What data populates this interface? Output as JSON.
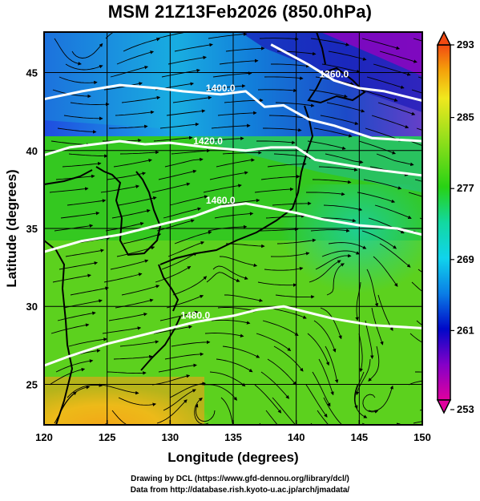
{
  "title": "MSM 21Z13Feb2026 (850.0hPa)",
  "map": {
    "region": "East Asia / Japan",
    "lon_range": [
      120,
      150
    ],
    "lat_range": [
      22.4,
      47.6
    ],
    "x_ticks": [
      "120",
      "125",
      "130",
      "135",
      "140",
      "145",
      "150"
    ],
    "y_ticks": [
      "25",
      "30",
      "35",
      "40",
      "45"
    ],
    "xlabel": "Longitude (degrees)",
    "ylabel": "Latitude  (degrees)",
    "grid": true,
    "field": "temperature (shaded), geopotential height (white contours), wind (streamlines)",
    "contours": [
      {
        "label": "1360.0",
        "points": [
          [
            138,
            46.8
          ],
          [
            141,
            45.5
          ],
          [
            143,
            44.5
          ],
          [
            145,
            44.0
          ],
          [
            147,
            43.8
          ],
          [
            150,
            43.2
          ]
        ]
      },
      {
        "label": "1400.0",
        "points": [
          [
            120,
            43.3
          ],
          [
            123,
            43.8
          ],
          [
            126,
            44.2
          ],
          [
            129,
            44.0
          ],
          [
            131,
            43.8
          ],
          [
            134,
            43.6
          ],
          [
            136,
            43.8
          ],
          [
            137.5,
            42.8
          ],
          [
            139,
            42.9
          ],
          [
            141,
            42.0
          ],
          [
            143,
            41.6
          ],
          [
            146,
            40.8
          ],
          [
            150,
            40.6
          ]
        ]
      },
      {
        "label": "1420.0",
        "points": [
          [
            120,
            39.7
          ],
          [
            122,
            40.2
          ],
          [
            124,
            40.4
          ],
          [
            126,
            40.6
          ],
          [
            128,
            40.4
          ],
          [
            130,
            40.5
          ],
          [
            133,
            40.2
          ],
          [
            136,
            40.0
          ],
          [
            138,
            40.2
          ],
          [
            140,
            40.2
          ],
          [
            141.5,
            39.4
          ],
          [
            143,
            39.2
          ],
          [
            146,
            38.8
          ],
          [
            150,
            38.4
          ]
        ]
      },
      {
        "label": "1460.0",
        "points": [
          [
            120,
            33.5
          ],
          [
            123,
            34.2
          ],
          [
            126,
            34.6
          ],
          [
            128,
            35.0
          ],
          [
            130,
            35.4
          ],
          [
            132,
            35.8
          ],
          [
            134,
            36.4
          ],
          [
            136,
            36.6
          ],
          [
            138,
            36.3
          ],
          [
            140,
            36.0
          ],
          [
            142,
            35.6
          ],
          [
            145,
            35.2
          ],
          [
            148,
            35.0
          ],
          [
            150,
            34.6
          ]
        ]
      },
      {
        "label": "1480.0",
        "points": [
          [
            120,
            26.2
          ],
          [
            122,
            26.8
          ],
          [
            125,
            27.6
          ],
          [
            128,
            28.2
          ],
          [
            130,
            28.6
          ],
          [
            132,
            29.0
          ],
          [
            135,
            29.4
          ],
          [
            137,
            29.8
          ],
          [
            139,
            30.0
          ],
          [
            141,
            29.6
          ],
          [
            143,
            29.2
          ],
          [
            146,
            28.8
          ],
          [
            150,
            28.6
          ]
        ]
      }
    ]
  },
  "colorbar": {
    "ticks": [
      "293",
      "285",
      "277",
      "269",
      "261",
      "253"
    ],
    "range": [
      253,
      293
    ],
    "colors": [
      "#e0009e",
      "#8400c8",
      "#0008c8",
      "#0a7ee6",
      "#10d4ec",
      "#12d8a0",
      "#28d214",
      "#a0e01c",
      "#f0e81e",
      "#f4a00a",
      "#f24a12"
    ]
  },
  "credits": {
    "line1": "Drawing by DCL (https://www.gfd-dennou.org/library/dcl/)",
    "line2": "Data from http://database.rish.kyoto-u.ac.jp/arch/jmadata/"
  }
}
